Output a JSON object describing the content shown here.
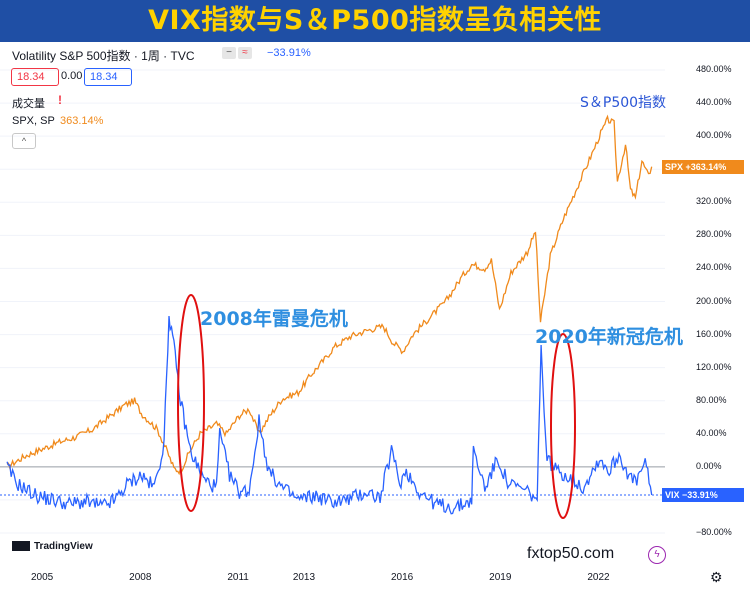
{
  "banner": {
    "title": "VIX指数与S＆P500指数呈负相关性"
  },
  "legend": {
    "title": "Volatility S&P 500指数 · 1周 · TVC",
    "change": "−33.91%",
    "open": "18.34",
    "mid": "0.00",
    "close": "18.34",
    "volume_label": "成交量",
    "alert_icon": "!",
    "spx_name": "SPX, SP",
    "spx_change": "363.14%",
    "collapse": "^"
  },
  "badges": {
    "spx": "SPX  +363.14%",
    "vix": "VIX  −33.91%"
  },
  "annotations": {
    "spx": "S＆P500指数",
    "crisis_2008": "2008年雷曼危机",
    "crisis_2020": "2020年新冠危机"
  },
  "branding": {
    "tv": "TradingView",
    "watermark": "fxtop50.com"
  },
  "icons": {
    "bolt": "lightning-icon",
    "gear": "gear-icon"
  },
  "chart_data": {
    "type": "line",
    "ylabel": "",
    "ylim": [
      -80,
      480
    ],
    "yticks": [
      "480.00%",
      "440.00%",
      "400.00%",
      "360.00%",
      "320.00%",
      "280.00%",
      "240.00%",
      "200.00%",
      "160.00%",
      "120.00%",
      "80.00%",
      "40.00%",
      "0.00%",
      "−40.00%",
      "−80.00%"
    ],
    "xticks": [
      "2005",
      "2008",
      "2011",
      "2013",
      "2016",
      "2019",
      "2022"
    ],
    "series": [
      {
        "name": "SPX",
        "color": "#f08a1c",
        "points": [
          [
            2003.9,
            0
          ],
          [
            2004.5,
            14
          ],
          [
            2005.0,
            22
          ],
          [
            2005.5,
            30
          ],
          [
            2006.0,
            36
          ],
          [
            2006.5,
            45
          ],
          [
            2007.0,
            60
          ],
          [
            2007.5,
            75
          ],
          [
            2007.8,
            80
          ],
          [
            2008.0,
            65
          ],
          [
            2008.5,
            45
          ],
          [
            2008.8,
            18
          ],
          [
            2009.0,
            -2
          ],
          [
            2009.2,
            -5
          ],
          [
            2009.5,
            20
          ],
          [
            2009.8,
            40
          ],
          [
            2010.3,
            52
          ],
          [
            2010.6,
            40
          ],
          [
            2011.0,
            62
          ],
          [
            2011.3,
            70
          ],
          [
            2011.6,
            40
          ],
          [
            2011.9,
            60
          ],
          [
            2012.3,
            82
          ],
          [
            2012.8,
            90
          ],
          [
            2013.2,
            112
          ],
          [
            2013.6,
            130
          ],
          [
            2013.9,
            145
          ],
          [
            2014.4,
            158
          ],
          [
            2014.9,
            165
          ],
          [
            2015.4,
            170
          ],
          [
            2015.7,
            150
          ],
          [
            2016.0,
            140
          ],
          [
            2016.3,
            160
          ],
          [
            2016.8,
            180
          ],
          [
            2017.3,
            200
          ],
          [
            2017.8,
            230
          ],
          [
            2018.1,
            245
          ],
          [
            2018.5,
            240
          ],
          [
            2018.7,
            250
          ],
          [
            2018.95,
            190
          ],
          [
            2019.3,
            235
          ],
          [
            2019.8,
            260
          ],
          [
            2020.05,
            285
          ],
          [
            2020.2,
            175
          ],
          [
            2020.5,
            255
          ],
          [
            2020.9,
            300
          ],
          [
            2021.4,
            345
          ],
          [
            2021.9,
            390
          ],
          [
            2022.0,
            400
          ],
          [
            2022.25,
            420
          ],
          [
            2022.45,
            415
          ],
          [
            2022.55,
            345
          ],
          [
            2022.8,
            390
          ],
          [
            2022.95,
            335
          ],
          [
            2023.1,
            325
          ],
          [
            2023.3,
            370
          ],
          [
            2023.5,
            352
          ],
          [
            2023.6,
            363
          ]
        ]
      },
      {
        "name": "VIX",
        "color": "#2962ff",
        "points": [
          [
            2003.9,
            0
          ],
          [
            2004.2,
            -20
          ],
          [
            2004.8,
            -35
          ],
          [
            2005.3,
            -40
          ],
          [
            2005.8,
            -45
          ],
          [
            2006.3,
            -42
          ],
          [
            2006.8,
            -48
          ],
          [
            2007.2,
            -40
          ],
          [
            2007.6,
            -20
          ],
          [
            2008.0,
            -10
          ],
          [
            2008.4,
            -25
          ],
          [
            2008.7,
            30
          ],
          [
            2008.85,
            185
          ],
          [
            2009.0,
            145
          ],
          [
            2009.2,
            80
          ],
          [
            2009.5,
            20
          ],
          [
            2009.9,
            -15
          ],
          [
            2010.3,
            -25
          ],
          [
            2010.4,
            40
          ],
          [
            2010.7,
            -10
          ],
          [
            2011.0,
            -30
          ],
          [
            2011.3,
            -28
          ],
          [
            2011.6,
            55
          ],
          [
            2011.9,
            -5
          ],
          [
            2012.3,
            -25
          ],
          [
            2012.8,
            -40
          ],
          [
            2013.3,
            -35
          ],
          [
            2013.8,
            -42
          ],
          [
            2014.3,
            -40
          ],
          [
            2014.9,
            -30
          ],
          [
            2015.3,
            -38
          ],
          [
            2015.65,
            20
          ],
          [
            2015.9,
            -20
          ],
          [
            2016.1,
            -5
          ],
          [
            2016.5,
            -30
          ],
          [
            2017.0,
            -45
          ],
          [
            2017.6,
            -50
          ],
          [
            2018.1,
            -40
          ],
          [
            2018.15,
            20
          ],
          [
            2018.5,
            -25
          ],
          [
            2018.9,
            10
          ],
          [
            2019.2,
            -20
          ],
          [
            2019.8,
            -30
          ],
          [
            2020.1,
            -40
          ],
          [
            2020.22,
            140
          ],
          [
            2020.4,
            10
          ],
          [
            2020.7,
            -5
          ],
          [
            2021.0,
            -10
          ],
          [
            2021.5,
            -25
          ],
          [
            2022.0,
            10
          ],
          [
            2022.3,
            -5
          ],
          [
            2022.6,
            15
          ],
          [
            2022.9,
            -10
          ],
          [
            2023.1,
            -20
          ],
          [
            2023.4,
            5
          ],
          [
            2023.6,
            -34
          ]
        ]
      }
    ]
  }
}
